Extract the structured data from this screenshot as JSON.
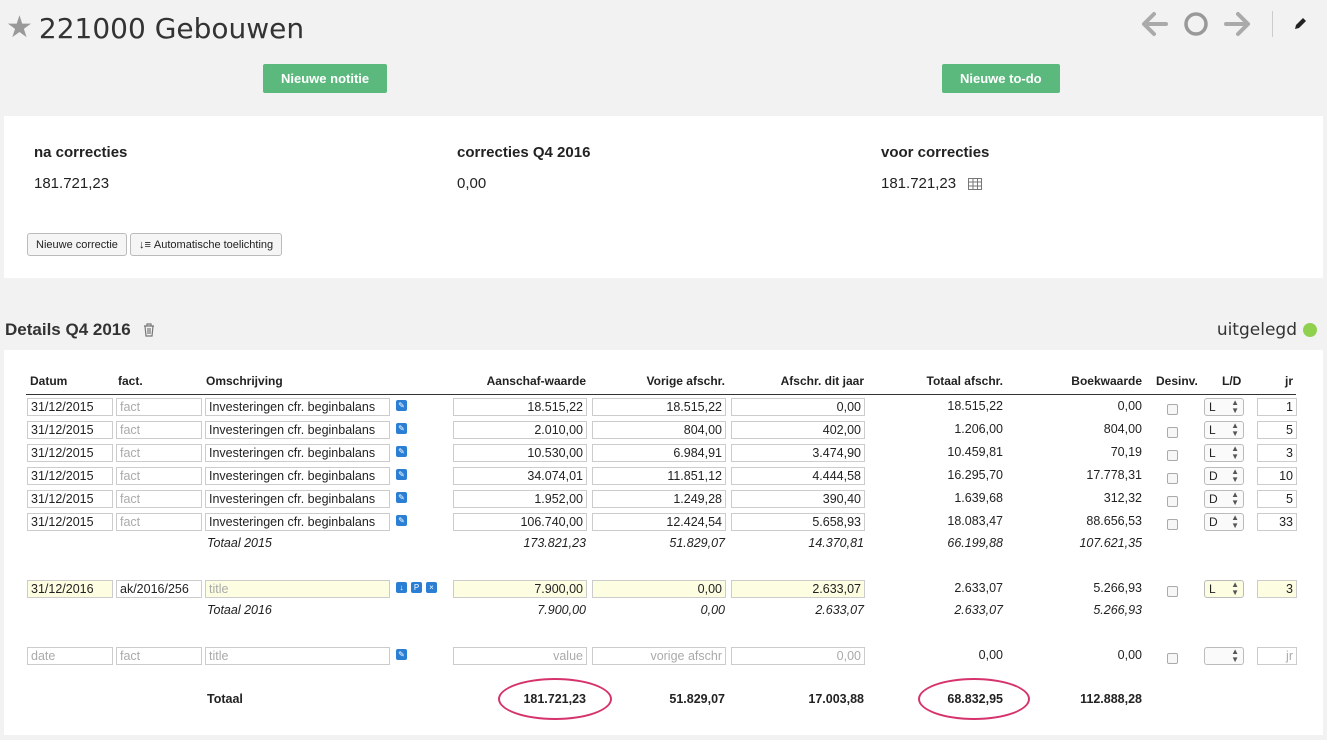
{
  "header": {
    "title": "221000 Gebouwen",
    "star_icon": "star-icon"
  },
  "buttons": {
    "new_note": "Nieuwe notitie",
    "new_todo": "Nieuwe to-do",
    "new_correction": "Nieuwe correctie",
    "auto_explain": "Automatische toelichting"
  },
  "summary": {
    "after_label": "na correcties",
    "after_value": "181.721,23",
    "corr_label": "correcties Q4 2016",
    "corr_value": "0,00",
    "before_label": "voor correcties",
    "before_value": "181.721,23"
  },
  "details": {
    "title": "Details Q4 2016",
    "status": "uitgelegd",
    "status_color": "#8fd14f"
  },
  "columns": [
    "Datum",
    "fact.",
    "Omschrijving",
    "Aanschaf-waarde",
    "Vorige afschr.",
    "Afschr. dit jaar",
    "Totaal afschr.",
    "Boekwaarde",
    "Desinv.",
    "L/D",
    "jr"
  ],
  "rows2015": [
    {
      "date": "31/12/2015",
      "fact": "fact",
      "desc": "Investeringen cfr. beginbalans",
      "aan": "18.515,22",
      "vor": "18.515,22",
      "dit": "0,00",
      "tot": "18.515,22",
      "boek": "0,00",
      "ld": "L",
      "jr": "1"
    },
    {
      "date": "31/12/2015",
      "fact": "fact",
      "desc": "Investeringen cfr. beginbalans",
      "aan": "2.010,00",
      "vor": "804,00",
      "dit": "402,00",
      "tot": "1.206,00",
      "boek": "804,00",
      "ld": "L",
      "jr": "5"
    },
    {
      "date": "31/12/2015",
      "fact": "fact",
      "desc": "Investeringen cfr. beginbalans",
      "aan": "10.530,00",
      "vor": "6.984,91",
      "dit": "3.474,90",
      "tot": "10.459,81",
      "boek": "70,19",
      "ld": "L",
      "jr": "3"
    },
    {
      "date": "31/12/2015",
      "fact": "fact",
      "desc": "Investeringen cfr. beginbalans",
      "aan": "34.074,01",
      "vor": "11.851,12",
      "dit": "4.444,58",
      "tot": "16.295,70",
      "boek": "17.778,31",
      "ld": "D",
      "jr": "10"
    },
    {
      "date": "31/12/2015",
      "fact": "fact",
      "desc": "Investeringen cfr. beginbalans",
      "aan": "1.952,00",
      "vor": "1.249,28",
      "dit": "390,40",
      "tot": "1.639,68",
      "boek": "312,32",
      "ld": "D",
      "jr": "5"
    },
    {
      "date": "31/12/2015",
      "fact": "fact",
      "desc": "Investeringen cfr. beginbalans",
      "aan": "106.740,00",
      "vor": "12.424,54",
      "dit": "5.658,93",
      "tot": "18.083,47",
      "boek": "88.656,53",
      "ld": "D",
      "jr": "33"
    }
  ],
  "total2015": {
    "label": "Totaal 2015",
    "aan": "173.821,23",
    "vor": "51.829,07",
    "dit": "14.370,81",
    "tot": "66.199,88",
    "boek": "107.621,35"
  },
  "row2016": {
    "date": "31/12/2016",
    "fact": "ak/2016/256",
    "desc_ph": "title",
    "aan": "7.900,00",
    "vor": "0,00",
    "dit": "2.633,07",
    "tot": "2.633,07",
    "boek": "5.266,93",
    "ld": "L",
    "jr": "3"
  },
  "total2016": {
    "label": "Totaal 2016",
    "aan": "7.900,00",
    "vor": "0,00",
    "dit": "2.633,07",
    "tot": "2.633,07",
    "boek": "5.266,93"
  },
  "newrow": {
    "date_ph": "date",
    "fact_ph": "fact",
    "desc_ph": "title",
    "aan_ph": "value",
    "vor_ph": "vorige afschr",
    "dit": "0,00",
    "tot": "0,00",
    "boek": "0,00",
    "jr_ph": "jr"
  },
  "grand": {
    "label": "Totaal",
    "aan": "181.721,23",
    "vor": "51.829,07",
    "dit": "17.003,88",
    "tot": "68.832,95",
    "boek": "112.888,28"
  }
}
